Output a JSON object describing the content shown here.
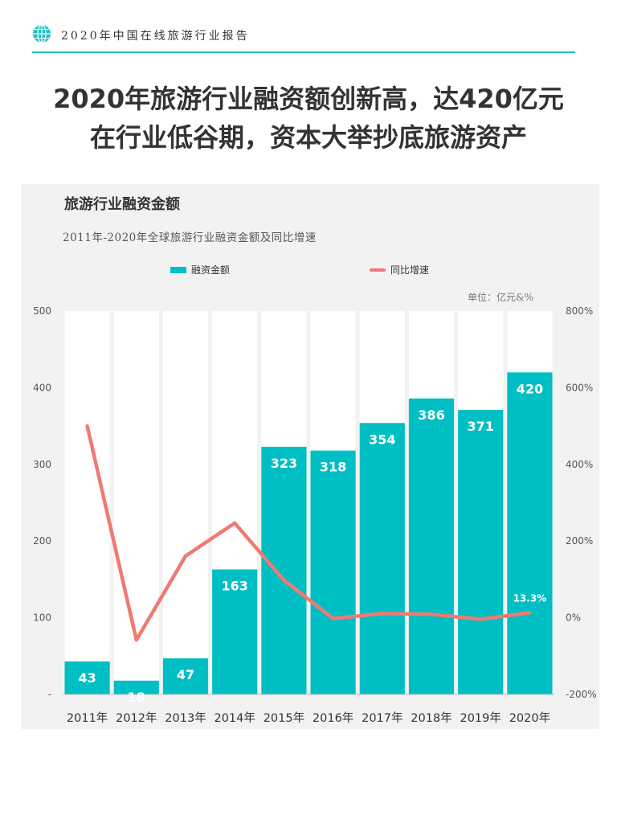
{
  "header": {
    "report_title": "2020年中国在线旅游行业报告"
  },
  "headline": {
    "line1": "2020年旅游行业融资额创新高，达420亿元",
    "line2": "在行业低谷期，资本大举抄底旅游资产"
  },
  "chart_data": {
    "type": "bar",
    "title": "旅游行业融资金额",
    "subtitle": "2011年-2020年全球旅游行业融资金额及同比增速",
    "unit": "单位：亿元&%",
    "categories": [
      "2011年",
      "2012年",
      "2013年",
      "2014年",
      "2015年",
      "2016年",
      "2017年",
      "2018年",
      "2019年",
      "2020年"
    ],
    "series": [
      {
        "name": "融资金额",
        "type": "bar",
        "axis": "left",
        "color": "#00bfc4",
        "values": [
          43,
          18,
          47,
          163,
          323,
          318,
          354,
          386,
          371,
          420
        ]
      },
      {
        "name": "同比增速",
        "type": "line",
        "axis": "right",
        "color": "#f07a72",
        "values": [
          500,
          -58,
          161,
          247,
          98,
          -2,
          11,
          9,
          -4,
          13.3
        ]
      }
    ],
    "left_axis": {
      "ylim": [
        0,
        500
      ],
      "ticks": [
        0,
        100,
        200,
        300,
        400,
        500
      ],
      "tick_labels": [
        "-",
        "100",
        "200",
        "300",
        "400",
        "500"
      ]
    },
    "right_axis": {
      "ylim": [
        -200,
        800
      ],
      "ticks": [
        -200,
        0,
        200,
        400,
        600,
        800
      ],
      "tick_labels": [
        "-200%",
        "0%",
        "200%",
        "400%",
        "600%",
        "800%"
      ]
    },
    "line_labels": [
      {
        "index": 9,
        "text": "13.3%"
      }
    ],
    "legend": "top",
    "grid": false
  }
}
